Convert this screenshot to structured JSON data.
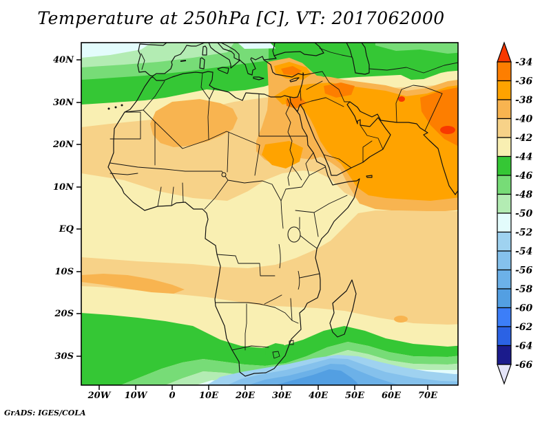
{
  "title": "Temperature at 250hPa [C], VT: 2017062000",
  "grads_stamp": "GrADS: IGES/COLA",
  "chart_data": {
    "type": "filled-contour-map",
    "title": "Temperature at 250hPa [C], VT: 2017062000",
    "variable": "Temperature",
    "pressure_level": "250hPa",
    "units": "C",
    "valid_time": "2017062000",
    "projection": "latlon",
    "region": {
      "lon_range": [
        "25W",
        "78E"
      ],
      "lat_range": [
        "37S",
        "44N"
      ]
    },
    "lat_tick_labels": [
      "40N",
      "30N",
      "20N",
      "10N",
      "EQ",
      "10S",
      "20S",
      "30S"
    ],
    "lon_tick_labels": [
      "20W",
      "10W",
      "0",
      "10E",
      "20E",
      "30E",
      "40E",
      "50E",
      "60E",
      "70E"
    ],
    "contour_levels": [
      -34,
      -36,
      -38,
      -40,
      -42,
      -44,
      -46,
      -48,
      -50,
      -52,
      -54,
      -56,
      -58,
      -60,
      -62,
      -64,
      -66
    ],
    "palette": [
      "#f83800",
      "#fd7e00",
      "#ffa300",
      "#f8b450",
      "#f7d288",
      "#f9efb2",
      "#35c735",
      "#77dc77",
      "#b3ecb3",
      "#e3fcfc",
      "#9fd2f0",
      "#85c1ec",
      "#6cb1e8",
      "#539fe2",
      "#3c7ef8",
      "#2b62e4",
      "#1b1b8c",
      "#e4e4f8"
    ],
    "palette_meaning": "palette[0] = warmer than -34C (top arrow), palette[1..16] = 2C bins from -34 down to -66, palette[17] = colder than -66C (bottom arrow)",
    "legend_position": "right",
    "grid": "off",
    "field_summary": "Warmest 250hPa air (-34 to -38C, deep orange/red spots) over the Middle East, Iran, Pakistan and NW India with a secondary orange core over the central Sahara; -38 to -42C (tan) across the Sahara, Arabia and a subtropical band near 5S-15S; -42 to -44C (pale yellow) over equatorial Africa; green -44 to -50C belts along the Mediterranean/Black Sea (30-44N) and along 20-30S; coldest air (-50 to -62C, cyan and blues) south of 30S near South Africa and in the far northwest corner"
  }
}
